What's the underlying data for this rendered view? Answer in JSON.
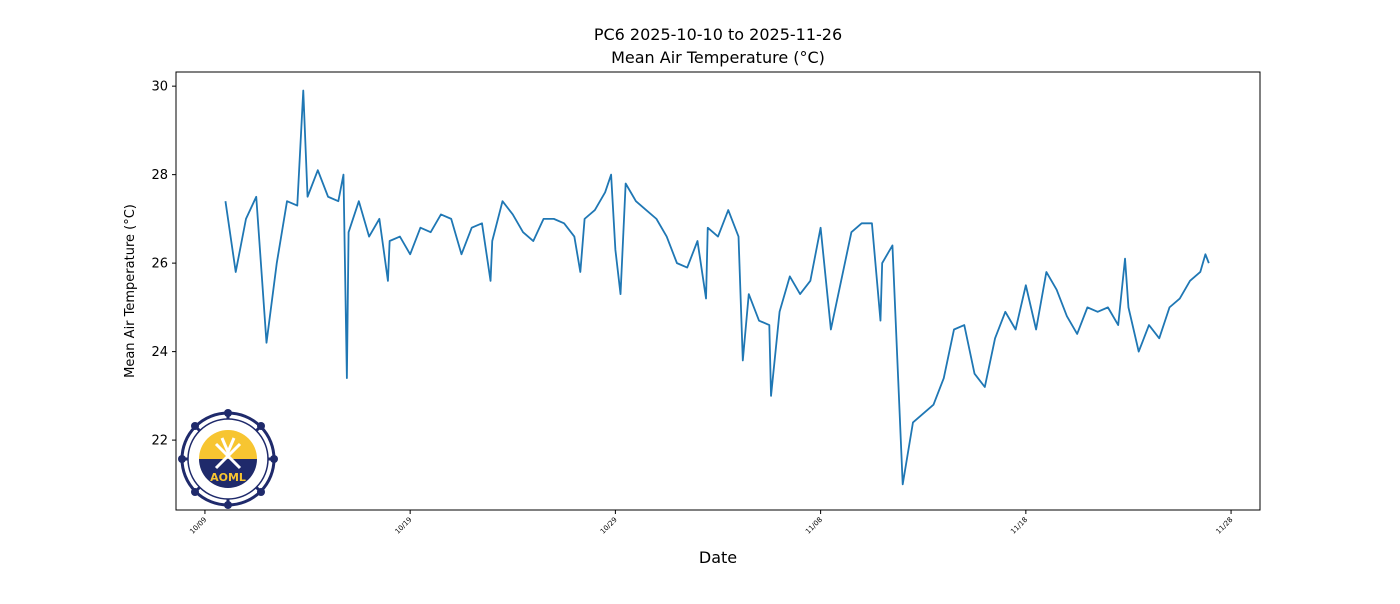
{
  "chart_data": {
    "type": "line",
    "title": [
      "PC6 2025-10-10 to 2025-11-26",
      "Mean Air Temperature (°C)"
    ],
    "xlabel": "Date",
    "ylabel": "Mean Air Temperature (°C)",
    "logo_text": "AOML",
    "xlim": [
      "2025-10-07T14:10",
      "2025-11-29T09:50"
    ],
    "ylim": [
      20.42,
      30.32
    ],
    "xticks": [
      {
        "value": "2025-10-09",
        "label": "10/09"
      },
      {
        "value": "2025-10-19",
        "label": "10/19"
      },
      {
        "value": "2025-10-29",
        "label": "10/29"
      },
      {
        "value": "2025-11-08",
        "label": "11/08"
      },
      {
        "value": "2025-11-18",
        "label": "11/18"
      },
      {
        "value": "2025-11-28",
        "label": "11/28"
      }
    ],
    "yticks": [
      22,
      24,
      26,
      28,
      30
    ],
    "grid": false,
    "x": [
      "2025-10-10T00:00",
      "2025-10-10T12:00",
      "2025-10-11T00:00",
      "2025-10-11T12:00",
      "2025-10-12T00:00",
      "2025-10-12T12:00",
      "2025-10-13T00:00",
      "2025-10-13T12:00",
      "2025-10-13T19:00",
      "2025-10-14T00:00",
      "2025-10-14T12:00",
      "2025-10-15T00:00",
      "2025-10-15T12:00",
      "2025-10-15T18:00",
      "2025-10-15T22:00",
      "2025-10-16T00:00",
      "2025-10-16T12:00",
      "2025-10-17T00:00",
      "2025-10-17T12:00",
      "2025-10-17T22:00",
      "2025-10-18T00:00",
      "2025-10-18T12:00",
      "2025-10-19T00:00",
      "2025-10-19T12:00",
      "2025-10-20T00:00",
      "2025-10-20T12:00",
      "2025-10-21T00:00",
      "2025-10-21T12:00",
      "2025-10-22T00:00",
      "2025-10-22T12:00",
      "2025-10-22T22:00",
      "2025-10-23T00:00",
      "2025-10-23T12:00",
      "2025-10-24T00:00",
      "2025-10-24T12:00",
      "2025-10-25T00:00",
      "2025-10-25T12:00",
      "2025-10-26T00:00",
      "2025-10-26T12:00",
      "2025-10-27T00:00",
      "2025-10-27T07:00",
      "2025-10-27T12:00",
      "2025-10-28T00:00",
      "2025-10-28T12:00",
      "2025-10-28T19:00",
      "2025-10-29T00:00",
      "2025-10-29T06:00",
      "2025-10-29T12:00",
      "2025-10-30T00:00",
      "2025-10-30T12:00",
      "2025-10-31T00:00",
      "2025-10-31T12:00",
      "2025-11-01T00:00",
      "2025-11-01T12:00",
      "2025-11-02T00:00",
      "2025-11-02T10:00",
      "2025-11-02T12:00",
      "2025-11-03T00:00",
      "2025-11-03T12:00",
      "2025-11-04T00:00",
      "2025-11-04T05:00",
      "2025-11-04T12:00",
      "2025-11-05T00:00",
      "2025-11-05T12:00",
      "2025-11-05T14:00",
      "2025-11-06T00:00",
      "2025-11-06T12:00",
      "2025-11-07T00:00",
      "2025-11-07T12:00",
      "2025-11-08T00:00",
      "2025-11-08T12:00",
      "2025-11-09T00:00",
      "2025-11-09T12:00",
      "2025-11-10T00:00",
      "2025-11-10T12:00",
      "2025-11-10T22:00",
      "2025-11-11T00:00",
      "2025-11-11T12:00",
      "2025-11-12T00:00",
      "2025-11-12T12:00",
      "2025-11-13T00:00",
      "2025-11-13T12:00",
      "2025-11-14T00:00",
      "2025-11-14T12:00",
      "2025-11-15T00:00",
      "2025-11-15T12:00",
      "2025-11-16T00:00",
      "2025-11-16T12:00",
      "2025-11-17T00:00",
      "2025-11-17T12:00",
      "2025-11-18T00:00",
      "2025-11-18T12:00",
      "2025-11-19T00:00",
      "2025-11-19T12:00",
      "2025-11-20T00:00",
      "2025-11-20T12:00",
      "2025-11-21T00:00",
      "2025-11-21T12:00",
      "2025-11-22T00:00",
      "2025-11-22T12:00",
      "2025-11-22T20:00",
      "2025-11-23T00:00",
      "2025-11-23T12:00",
      "2025-11-24T00:00",
      "2025-11-24T12:00",
      "2025-11-25T00:00",
      "2025-11-25T12:00",
      "2025-11-26T00:00",
      "2025-11-26T12:00",
      "2025-11-26T18:00",
      "2025-11-26T22:00"
    ],
    "series": [
      {
        "name": "Mean Air Temperature",
        "color": "#1f77b4",
        "values": [
          27.4,
          25.8,
          27.0,
          27.5,
          24.2,
          26.0,
          27.4,
          27.3,
          29.9,
          27.5,
          28.1,
          27.5,
          27.4,
          28.0,
          23.4,
          26.7,
          27.4,
          26.6,
          27.0,
          25.6,
          26.5,
          26.6,
          26.2,
          26.8,
          26.7,
          27.1,
          27.0,
          26.2,
          26.8,
          26.9,
          25.6,
          26.5,
          27.4,
          27.1,
          26.7,
          26.5,
          27.0,
          27.0,
          26.9,
          26.6,
          25.8,
          27.0,
          27.2,
          27.6,
          28.0,
          26.3,
          25.3,
          27.8,
          27.4,
          27.2,
          27.0,
          26.6,
          26.0,
          25.9,
          26.5,
          25.2,
          26.8,
          26.6,
          27.2,
          26.6,
          23.8,
          25.3,
          24.7,
          24.6,
          23.0,
          24.9,
          25.7,
          25.3,
          25.6,
          26.8,
          24.5,
          25.6,
          26.7,
          26.9,
          26.9,
          24.7,
          26.0,
          26.4,
          21.0,
          22.4,
          22.6,
          22.8,
          23.4,
          24.5,
          24.6,
          23.5,
          23.2,
          24.3,
          24.9,
          24.5,
          25.5,
          24.5,
          25.8,
          25.4,
          24.8,
          24.4,
          25.0,
          24.9,
          25.0,
          24.6,
          26.1,
          25.0,
          24.0,
          24.6,
          24.3,
          25.0,
          25.2,
          25.6,
          25.8,
          26.2,
          26.0
        ]
      }
    ]
  }
}
